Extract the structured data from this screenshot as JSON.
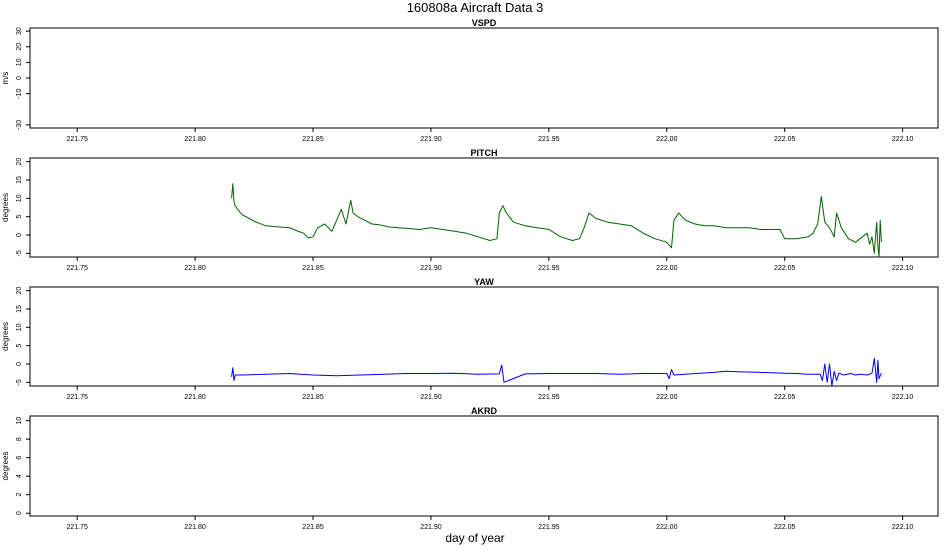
{
  "title": "160808a   Aircraft Data 3",
  "xlabel": "day of year",
  "chart_data": [
    {
      "type": "line",
      "title": "VSPD",
      "ylabel": "m/s",
      "xlim": [
        221.73,
        222.115
      ],
      "ylim": [
        -32,
        32
      ],
      "xticks": [
        "221.75",
        "221.80",
        "221.85",
        "221.90",
        "221.95",
        "222.00",
        "222.05",
        "222.10"
      ],
      "yticks": [
        "-30",
        "-10",
        "0",
        "10",
        "20",
        "30"
      ],
      "color": "#000000",
      "series": []
    },
    {
      "type": "line",
      "title": "PITCH",
      "ylabel": "degrees",
      "xlim": [
        221.73,
        222.115
      ],
      "ylim": [
        -6,
        21
      ],
      "xticks": [
        "221.75",
        "221.80",
        "221.85",
        "221.90",
        "221.95",
        "222.00",
        "222.05",
        "222.10"
      ],
      "yticks": [
        "-5",
        "0",
        "5",
        "10",
        "15",
        "20"
      ],
      "color": "#006400",
      "series": [
        {
          "x": [
            221.8155,
            221.816,
            221.8165,
            221.817,
            221.818,
            221.82,
            221.823,
            221.826,
            221.83,
            221.835,
            221.84,
            221.843,
            221.846,
            221.848,
            221.85,
            221.852,
            221.855,
            221.858,
            221.86,
            221.862,
            221.864,
            221.866,
            221.867,
            221.869,
            221.872,
            221.875,
            221.878,
            221.882,
            221.886,
            221.89,
            221.895,
            221.9,
            221.905,
            221.91,
            221.915,
            221.92,
            221.925,
            221.928,
            221.929,
            221.9305,
            221.932,
            221.935,
            221.94,
            221.945,
            221.95,
            221.955,
            221.96,
            221.963,
            221.965,
            221.967,
            221.97,
            221.975,
            221.98,
            221.985,
            221.99,
            221.995,
            222.0,
            222.002,
            222.003,
            222.005,
            222.008,
            222.012,
            222.016,
            222.02,
            222.025,
            222.03,
            222.035,
            222.04,
            222.045,
            222.048,
            222.05,
            222.055,
            222.06,
            222.062,
            222.064,
            222.0655,
            222.067,
            222.069,
            222.071,
            222.072,
            222.074,
            222.077,
            222.08,
            222.083,
            222.085,
            222.086,
            222.087,
            222.088,
            222.089,
            222.0895,
            222.09,
            222.0905,
            222.091
          ],
          "y": [
            10,
            14,
            9,
            8,
            7,
            5.5,
            4.5,
            3.5,
            2.5,
            2.2,
            2.0,
            1.2,
            0.5,
            -0.8,
            -0.5,
            2.0,
            3.0,
            1.0,
            4.0,
            7.0,
            3.0,
            9.5,
            6.0,
            5.0,
            4.0,
            3.0,
            2.8,
            2.2,
            2.0,
            1.8,
            1.5,
            2.0,
            1.5,
            1.0,
            0.5,
            -0.5,
            -1.5,
            -1.0,
            6.0,
            8.0,
            6.0,
            3.5,
            2.5,
            2.0,
            1.5,
            -0.5,
            -1.5,
            -1.0,
            2.0,
            6.0,
            4.5,
            3.5,
            3.0,
            2.5,
            0.5,
            -1.0,
            -2.0,
            -3.5,
            4.0,
            6.0,
            4.0,
            3.0,
            2.5,
            2.5,
            2.0,
            2.0,
            2.0,
            1.5,
            1.5,
            1.5,
            -1.0,
            -1.0,
            -0.5,
            0.5,
            3.0,
            10.5,
            3.5,
            2.0,
            -0.5,
            6.0,
            2.0,
            -1.0,
            -2.0,
            -0.5,
            0.5,
            -2.5,
            -0.5,
            -5.0,
            3.5,
            -3.0,
            -6.0,
            4.0,
            -2.0
          ]
        }
      ]
    },
    {
      "type": "line",
      "title": "YAW",
      "ylabel": "degrees",
      "xlim": [
        221.73,
        222.115
      ],
      "ylim": [
        -6,
        21
      ],
      "xticks": [
        "221.75",
        "221.80",
        "221.85",
        "221.90",
        "221.95",
        "222.00",
        "222.05",
        "222.10"
      ],
      "yticks": [
        "-5",
        "0",
        "5",
        "10",
        "15",
        "20"
      ],
      "color": "#0000ff",
      "series": [
        {
          "x": [
            221.8155,
            221.816,
            221.8165,
            221.817,
            221.82,
            221.83,
            221.84,
            221.85,
            221.86,
            221.87,
            221.88,
            221.89,
            221.9,
            221.91,
            221.92,
            221.929,
            221.93,
            221.931,
            221.94,
            221.95,
            221.96,
            221.97,
            221.98,
            221.99,
            222.0,
            222.001,
            222.002,
            222.003,
            222.01,
            222.02,
            222.025,
            222.03,
            222.04,
            222.05,
            222.055,
            222.06,
            222.065,
            222.066,
            222.067,
            222.068,
            222.069,
            222.07,
            222.071,
            222.072,
            222.073,
            222.075,
            222.078,
            222.08,
            222.082,
            222.085,
            222.087,
            222.088,
            222.089,
            222.0895,
            222.09,
            222.091
          ],
          "y": [
            -3.5,
            -1.0,
            -4.5,
            -3.0,
            -3.0,
            -2.8,
            -2.6,
            -3.0,
            -3.2,
            -3.0,
            -2.8,
            -2.6,
            -2.6,
            -2.5,
            -2.8,
            -2.7,
            -0.3,
            -5.0,
            -2.7,
            -2.6,
            -2.6,
            -2.6,
            -2.8,
            -2.6,
            -2.6,
            -4.0,
            -1.5,
            -3.0,
            -2.7,
            -2.3,
            -2.0,
            -2.1,
            -2.3,
            -2.5,
            -2.6,
            -2.8,
            -2.8,
            -4.5,
            0.0,
            -5.0,
            0.0,
            -6.0,
            -2.0,
            -4.5,
            -2.5,
            -3.0,
            -2.6,
            -3.0,
            -2.8,
            -3.0,
            -2.5,
            1.5,
            -5.0,
            1.0,
            -4.0,
            -2.5
          ]
        }
      ]
    },
    {
      "type": "line",
      "title": "AKRD",
      "ylabel": "degrees",
      "xlim": [
        221.73,
        222.115
      ],
      "ylim": [
        -0.3,
        10.5
      ],
      "xticks": [
        "221.75",
        "221.80",
        "221.85",
        "221.90",
        "221.95",
        "222.00",
        "222.05",
        "222.10"
      ],
      "yticks": [
        "0",
        "2",
        "4",
        "6",
        "8",
        "10"
      ],
      "color": "#000000",
      "series": []
    }
  ]
}
